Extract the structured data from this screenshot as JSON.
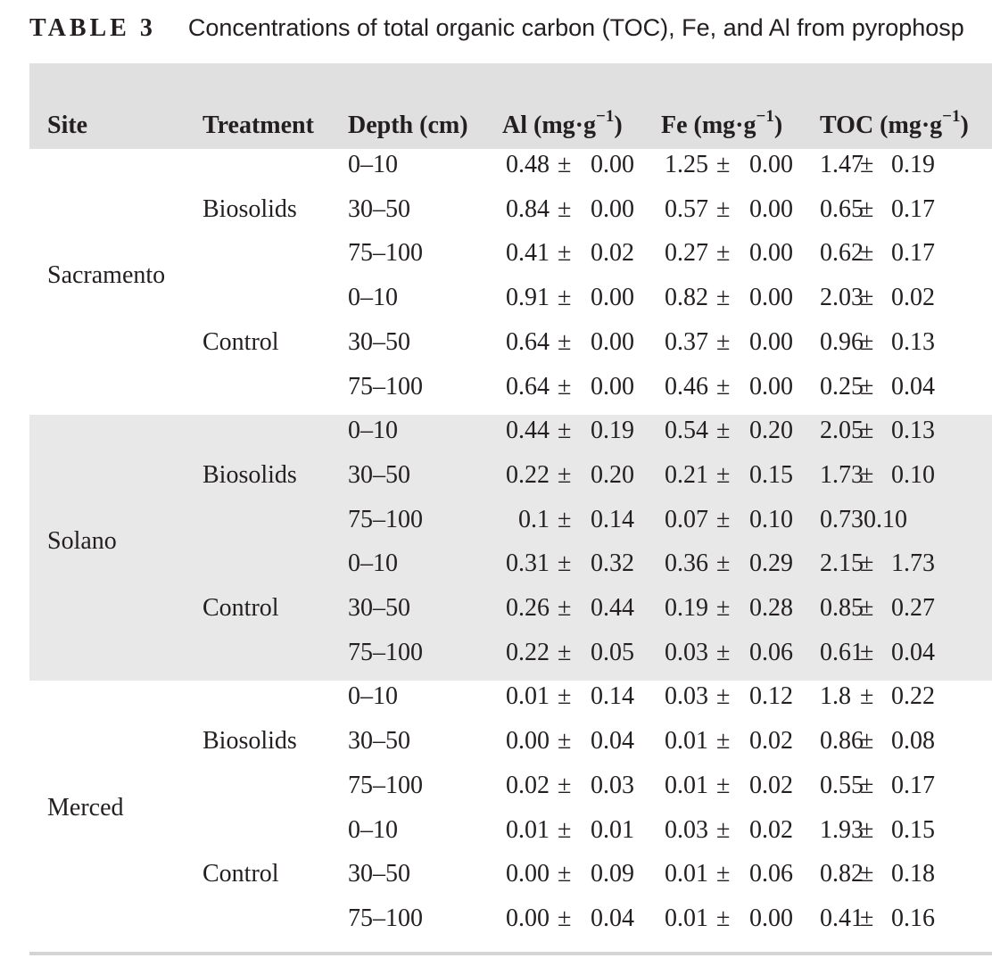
{
  "caption": {
    "label": "TABLE 3",
    "text": "Concentrations of total organic carbon (TOC), Fe, and Al from pyrophosp"
  },
  "table": {
    "headers": {
      "site": "Site",
      "treatment": "Treatment",
      "depth": "Depth (cm)",
      "al": "Al (mg·g",
      "fe": "Fe (mg·g",
      "toc": "TOC (mg·g",
      "exp": "−1",
      "close": ")"
    },
    "pm": "±",
    "groups": [
      {
        "site": "Sacramento",
        "treatments": [
          {
            "name": "Biosolids",
            "rows": [
              {
                "depth": "0–10",
                "al": [
                  "0.48",
                  "0.00"
                ],
                "fe": [
                  "1.25",
                  "0.00"
                ],
                "toc": [
                  "1.47",
                  "0.19"
                ]
              },
              {
                "depth": "30–50",
                "al": [
                  "0.84",
                  "0.00"
                ],
                "fe": [
                  "0.57",
                  "0.00"
                ],
                "toc": [
                  "0.65",
                  "0.17"
                ]
              },
              {
                "depth": "75–100",
                "al": [
                  "0.41",
                  "0.02"
                ],
                "fe": [
                  "0.27",
                  "0.00"
                ],
                "toc": [
                  "0.62",
                  "0.17"
                ]
              }
            ]
          },
          {
            "name": "Control",
            "rows": [
              {
                "depth": "0–10",
                "al": [
                  "0.91",
                  "0.00"
                ],
                "fe": [
                  "0.82",
                  "0.00"
                ],
                "toc": [
                  "2.03",
                  "0.02"
                ]
              },
              {
                "depth": "30–50",
                "al": [
                  "0.64",
                  "0.00"
                ],
                "fe": [
                  "0.37",
                  "0.00"
                ],
                "toc": [
                  "0.96",
                  "0.13"
                ]
              },
              {
                "depth": "75–100",
                "al": [
                  "0.64",
                  "0.00"
                ],
                "fe": [
                  "0.46",
                  "0.00"
                ],
                "toc": [
                  "0.25",
                  "0.04"
                ]
              }
            ]
          }
        ]
      },
      {
        "site": "Solano",
        "treatments": [
          {
            "name": "Biosolids",
            "rows": [
              {
                "depth": "0–10",
                "al": [
                  "0.44",
                  "0.19"
                ],
                "fe": [
                  "0.54",
                  "0.20"
                ],
                "toc": [
                  "2.05",
                  "0.13"
                ]
              },
              {
                "depth": "30–50",
                "al": [
                  "0.22",
                  "0.20"
                ],
                "fe": [
                  "0.21",
                  "0.15"
                ],
                "toc": [
                  "1.73",
                  "0.10"
                ]
              },
              {
                "depth": "75–100",
                "al": [
                  "0.1",
                  "0.14"
                ],
                "fe": [
                  "0.07",
                  "0.10"
                ],
                "toc": [
                  "0.730.10"
                ]
              }
            ]
          },
          {
            "name": "Control",
            "rows": [
              {
                "depth": "0–10",
                "al": [
                  "0.31",
                  "0.32"
                ],
                "fe": [
                  "0.36",
                  "0.29"
                ],
                "toc": [
                  "2.15",
                  "1.73"
                ]
              },
              {
                "depth": "30–50",
                "al": [
                  "0.26",
                  "0.44"
                ],
                "fe": [
                  "0.19",
                  "0.28"
                ],
                "toc": [
                  "0.85",
                  "0.27"
                ]
              },
              {
                "depth": "75–100",
                "al": [
                  "0.22",
                  "0.05"
                ],
                "fe": [
                  "0.03",
                  "0.06"
                ],
                "toc": [
                  "0.61",
                  "0.04"
                ]
              }
            ]
          }
        ]
      },
      {
        "site": "Merced",
        "treatments": [
          {
            "name": "Biosolids",
            "rows": [
              {
                "depth": "0–10",
                "al": [
                  "0.01",
                  "0.14"
                ],
                "fe": [
                  "0.03",
                  "0.12"
                ],
                "toc": [
                  "1.8",
                  "0.22"
                ]
              },
              {
                "depth": "30–50",
                "al": [
                  "0.00",
                  "0.04"
                ],
                "fe": [
                  "0.01",
                  "0.02"
                ],
                "toc": [
                  "0.86",
                  "0.08"
                ]
              },
              {
                "depth": "75–100",
                "al": [
                  "0.02",
                  "0.03"
                ],
                "fe": [
                  "0.01",
                  "0.02"
                ],
                "toc": [
                  "0.55",
                  "0.17"
                ]
              }
            ]
          },
          {
            "name": "Control",
            "rows": [
              {
                "depth": "0–10",
                "al": [
                  "0.01",
                  "0.01"
                ],
                "fe": [
                  "0.03",
                  "0.02"
                ],
                "toc": [
                  "1.93",
                  "0.15"
                ]
              },
              {
                "depth": "30–50",
                "al": [
                  "0.00",
                  "0.09"
                ],
                "fe": [
                  "0.01",
                  "0.06"
                ],
                "toc": [
                  "0.82",
                  "0.18"
                ]
              },
              {
                "depth": "75–100",
                "al": [
                  "0.00",
                  "0.04"
                ],
                "fe": [
                  "0.01",
                  "0.00"
                ],
                "toc": [
                  "0.41",
                  "0.16"
                ]
              }
            ]
          }
        ]
      }
    ]
  }
}
